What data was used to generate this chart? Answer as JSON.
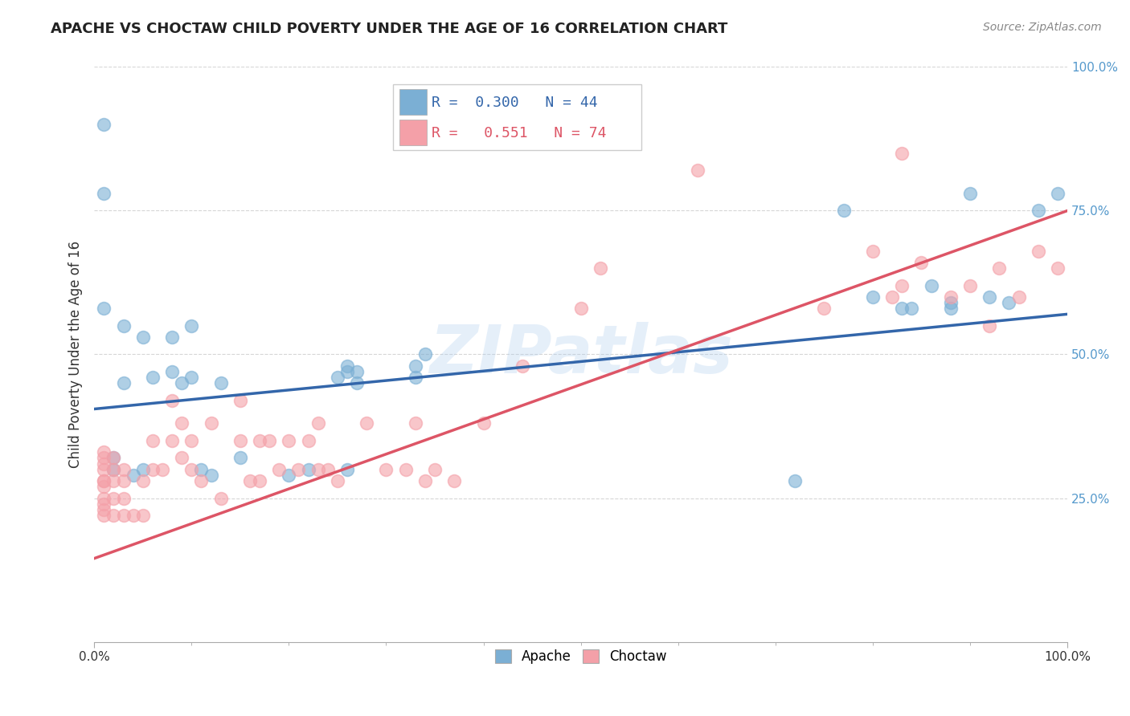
{
  "title": "APACHE VS CHOCTAW CHILD POVERTY UNDER THE AGE OF 16 CORRELATION CHART",
  "source": "Source: ZipAtlas.com",
  "ylabel": "Child Poverty Under the Age of 16",
  "xlim": [
    0.0,
    1.0
  ],
  "ylim": [
    0.0,
    1.0
  ],
  "xtick_positions": [
    0.0,
    1.0
  ],
  "xtick_labels": [
    "0.0%",
    "100.0%"
  ],
  "ytick_positions": [
    0.25,
    0.5,
    0.75,
    1.0
  ],
  "ytick_labels": [
    "25.0%",
    "50.0%",
    "75.0%",
    "100.0%"
  ],
  "apache_R": 0.3,
  "apache_N": 44,
  "choctaw_R": 0.551,
  "choctaw_N": 74,
  "apache_color": "#7BAFD4",
  "choctaw_color": "#F4A0A8",
  "apache_line_color": "#3366AA",
  "choctaw_line_color": "#DD5566",
  "watermark": "ZIPatlas",
  "apache_intercept": 0.405,
  "apache_slope": 0.165,
  "choctaw_intercept": 0.145,
  "choctaw_slope": 0.605,
  "apache_x": [
    0.01,
    0.01,
    0.01,
    0.02,
    0.02,
    0.03,
    0.03,
    0.04,
    0.05,
    0.05,
    0.06,
    0.08,
    0.08,
    0.09,
    0.1,
    0.1,
    0.11,
    0.12,
    0.13,
    0.15,
    0.2,
    0.22,
    0.25,
    0.26,
    0.26,
    0.26,
    0.27,
    0.27,
    0.33,
    0.33,
    0.34,
    0.72,
    0.77,
    0.8,
    0.83,
    0.84,
    0.86,
    0.88,
    0.88,
    0.9,
    0.92,
    0.94,
    0.97,
    0.99
  ],
  "apache_y": [
    0.9,
    0.78,
    0.58,
    0.32,
    0.3,
    0.55,
    0.45,
    0.29,
    0.3,
    0.53,
    0.46,
    0.47,
    0.53,
    0.45,
    0.46,
    0.55,
    0.3,
    0.29,
    0.45,
    0.32,
    0.29,
    0.3,
    0.46,
    0.47,
    0.48,
    0.3,
    0.45,
    0.47,
    0.46,
    0.48,
    0.5,
    0.28,
    0.75,
    0.6,
    0.58,
    0.58,
    0.62,
    0.59,
    0.58,
    0.78,
    0.6,
    0.59,
    0.75,
    0.78
  ],
  "choctaw_x": [
    0.01,
    0.01,
    0.01,
    0.01,
    0.01,
    0.01,
    0.01,
    0.01,
    0.01,
    0.01,
    0.01,
    0.02,
    0.02,
    0.02,
    0.02,
    0.02,
    0.03,
    0.03,
    0.03,
    0.03,
    0.04,
    0.05,
    0.05,
    0.06,
    0.06,
    0.07,
    0.08,
    0.08,
    0.09,
    0.09,
    0.1,
    0.1,
    0.11,
    0.12,
    0.13,
    0.15,
    0.15,
    0.16,
    0.17,
    0.17,
    0.18,
    0.19,
    0.2,
    0.21,
    0.22,
    0.23,
    0.23,
    0.24,
    0.25,
    0.28,
    0.3,
    0.32,
    0.33,
    0.34,
    0.35,
    0.37,
    0.4,
    0.44,
    0.5,
    0.52,
    0.62,
    0.75,
    0.8,
    0.82,
    0.83,
    0.83,
    0.85,
    0.88,
    0.9,
    0.92,
    0.93,
    0.95,
    0.97,
    0.99
  ],
  "choctaw_y": [
    0.22,
    0.23,
    0.24,
    0.25,
    0.27,
    0.28,
    0.3,
    0.31,
    0.32,
    0.33,
    0.28,
    0.22,
    0.25,
    0.28,
    0.3,
    0.32,
    0.22,
    0.25,
    0.28,
    0.3,
    0.22,
    0.22,
    0.28,
    0.3,
    0.35,
    0.3,
    0.35,
    0.42,
    0.32,
    0.38,
    0.3,
    0.35,
    0.28,
    0.38,
    0.25,
    0.35,
    0.42,
    0.28,
    0.28,
    0.35,
    0.35,
    0.3,
    0.35,
    0.3,
    0.35,
    0.3,
    0.38,
    0.3,
    0.28,
    0.38,
    0.3,
    0.3,
    0.38,
    0.28,
    0.3,
    0.28,
    0.38,
    0.48,
    0.58,
    0.65,
    0.82,
    0.58,
    0.68,
    0.6,
    0.62,
    0.85,
    0.66,
    0.6,
    0.62,
    0.55,
    0.65,
    0.6,
    0.68,
    0.65
  ]
}
